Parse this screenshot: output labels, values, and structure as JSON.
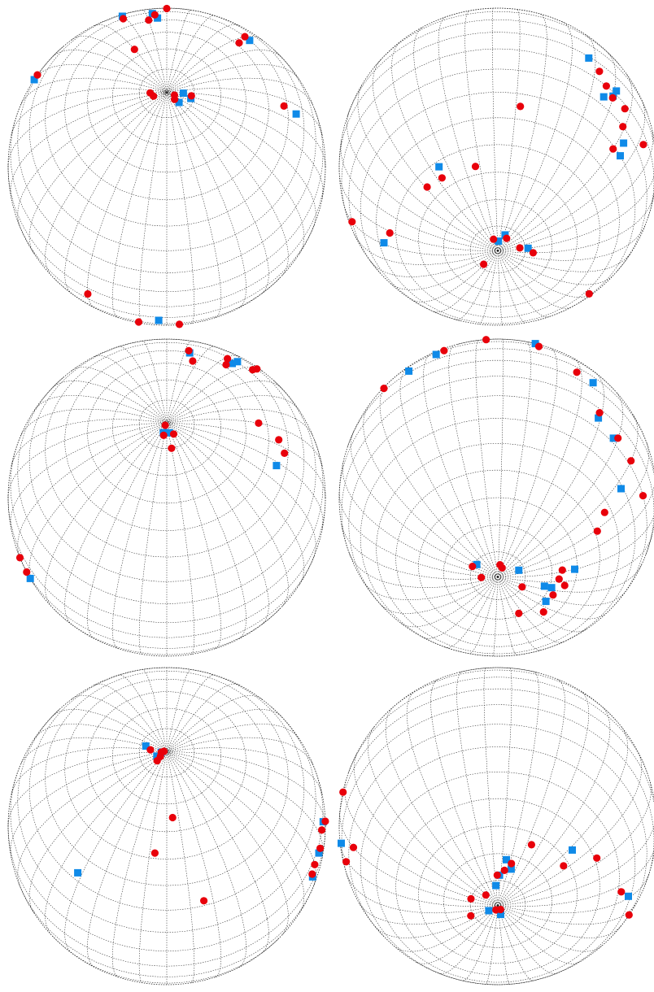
{
  "figure": {
    "panels": [
      {
        "id": "r1c1",
        "row": 0,
        "col": 0,
        "tilt_deg": 62,
        "rotation_deg": 10,
        "red": [
          [
            -170,
            32
          ],
          [
            -164,
            44
          ],
          [
            -149,
            40
          ],
          [
            -160,
            49
          ],
          [
            -140,
            66
          ],
          [
            -112,
            16
          ],
          [
            -116,
            -52
          ],
          [
            -138,
            -56
          ],
          [
            -165,
            -51
          ],
          [
            -149,
            -64
          ],
          [
            -147,
            -67
          ],
          [
            -153,
            -72
          ],
          [
            -158,
            -73
          ],
          [
            -165,
            -77
          ],
          [
            170,
            -70
          ],
          [
            125,
            -76
          ],
          [
            -177,
            -79
          ],
          [
            64,
            -79
          ],
          [
            15,
            -24
          ],
          [
            -1,
            -22
          ],
          [
            -20,
            -5
          ],
          [
            12,
            -40
          ],
          [
            147,
            48
          ],
          [
            150,
            40
          ],
          [
            106,
            42
          ],
          [
            93,
            81
          ],
          [
            78,
            87
          ],
          [
            55,
            86
          ],
          [
            -63,
            85
          ],
          [
            -79,
            84
          ]
        ],
        "blue": [
          [
            -163,
            42
          ],
          [
            -150,
            35
          ],
          [
            -165,
            48
          ],
          [
            -111,
            13
          ],
          [
            -140,
            -67
          ],
          [
            -146,
            -71
          ],
          [
            -154,
            -73
          ],
          [
            -152,
            -76
          ],
          [
            -160,
            -78
          ],
          [
            120,
            -80
          ],
          [
            -5,
            -38
          ],
          [
            18,
            -48
          ],
          [
            7,
            -14
          ],
          [
            147,
            40
          ],
          [
            105,
            35
          ],
          [
            98,
            84
          ],
          [
            86,
            81
          ],
          [
            58,
            84
          ]
        ]
      },
      {
        "id": "r1c2",
        "row": 0,
        "col": 1,
        "tilt_deg": -58,
        "rotation_deg": 62,
        "red": [
          [
            -84,
            18
          ],
          [
            -118,
            10
          ],
          [
            -128,
            -2
          ],
          [
            -146,
            -9
          ],
          [
            -156,
            -18
          ],
          [
            -162,
            -34
          ],
          [
            -103,
            18
          ],
          [
            -106,
            22
          ],
          [
            -89,
            -2
          ],
          [
            -62,
            24
          ],
          [
            -58,
            1
          ],
          [
            -40,
            -20
          ],
          [
            -31,
            -47
          ],
          [
            11,
            -55
          ],
          [
            23,
            -56
          ],
          [
            47,
            -57
          ],
          [
            72,
            -35
          ],
          [
            117,
            -12
          ],
          [
            133,
            -14
          ],
          [
            102,
            -5
          ],
          [
            106,
            -10
          ],
          [
            110,
            -13
          ],
          [
            119,
            -20
          ],
          [
            120,
            -31
          ],
          [
            160,
            -77
          ],
          [
            146,
            -82
          ],
          [
            94,
            -84
          ],
          [
            44,
            -85
          ],
          [
            -78,
            -82
          ]
        ],
        "blue": [
          [
            -73,
            33
          ],
          [
            -131,
            -9
          ],
          [
            -101,
            16
          ],
          [
            -93,
            6
          ],
          [
            -80,
            -8
          ],
          [
            -70,
            -10
          ],
          [
            -66,
            12
          ],
          [
            -57,
            -12
          ],
          [
            -39,
            -43
          ],
          [
            25,
            -52
          ],
          [
            106,
            -16
          ],
          [
            97,
            -1
          ],
          [
            111,
            -8
          ],
          [
            123,
            -25
          ],
          [
            125,
            -30
          ],
          [
            110,
            -12
          ],
          [
            150,
            -79
          ],
          [
            84,
            -83
          ],
          [
            65,
            -86
          ]
        ]
      },
      {
        "id": "r2c1",
        "row": 1,
        "col": 0,
        "tilt_deg": 62,
        "rotation_deg": 70,
        "red": [
          [
            -151,
            30
          ],
          [
            -152,
            36
          ],
          [
            -141,
            42
          ],
          [
            -144,
            48
          ],
          [
            -127,
            56
          ],
          [
            -122,
            48
          ],
          [
            -101,
            22
          ],
          [
            -101,
            18
          ],
          [
            -105,
            15
          ],
          [
            -102,
            9
          ],
          [
            -126,
            -57
          ],
          [
            -112,
            -60
          ],
          [
            -107,
            -60
          ],
          [
            -99,
            -57
          ],
          [
            -77,
            -53
          ],
          [
            -100,
            -40
          ],
          [
            -78,
            -25
          ],
          [
            -39,
            -27
          ],
          [
            -42,
            -20
          ],
          [
            -46,
            -24
          ],
          [
            24,
            -48
          ],
          [
            19,
            -39
          ],
          [
            -3,
            -14
          ],
          [
            0,
            -10
          ],
          [
            5,
            -13
          ],
          [
            -2,
            -23
          ],
          [
            170,
            54
          ],
          [
            163,
            45
          ],
          [
            157,
            42
          ],
          [
            100,
            85
          ],
          [
            80,
            80
          ],
          [
            57,
            85
          ],
          [
            37,
            89
          ]
        ],
        "blue": [
          [
            -145,
            39
          ],
          [
            -145,
            44
          ],
          [
            -123,
            50
          ],
          [
            -110,
            18
          ],
          [
            -102,
            13
          ],
          [
            -101,
            11
          ],
          [
            -122,
            -66
          ],
          [
            -104,
            -62
          ],
          [
            -95,
            -66
          ],
          [
            -80,
            -55
          ],
          [
            -91,
            -44
          ],
          [
            -46,
            -17
          ],
          [
            -38,
            -29
          ],
          [
            16,
            -43
          ],
          [
            8,
            -13
          ],
          [
            -1,
            -18
          ],
          [
            148,
            45
          ],
          [
            84,
            86
          ],
          [
            52,
            86
          ]
        ]
      },
      {
        "id": "r2c2",
        "row": 1,
        "col": 1,
        "tilt_deg": -60,
        "rotation_deg": 8,
        "red": [
          [
            -155,
            39
          ],
          [
            -148,
            40
          ],
          [
            -140,
            33
          ],
          [
            -144,
            43
          ],
          [
            -131,
            54
          ],
          [
            -121,
            42
          ],
          [
            -104,
            27
          ],
          [
            -89,
            23
          ],
          [
            -40,
            15
          ],
          [
            -13,
            19
          ],
          [
            3,
            32
          ],
          [
            24,
            20
          ],
          [
            38,
            5
          ],
          [
            49,
            -12
          ],
          [
            60,
            -16
          ],
          [
            70,
            -18
          ],
          [
            85,
            -20
          ],
          [
            75,
            -43
          ],
          [
            81,
            -49
          ],
          [
            98,
            -66
          ],
          [
            107,
            -67
          ],
          [
            114,
            -64
          ],
          [
            125,
            -67
          ],
          [
            145,
            -65
          ],
          [
            164,
            -71
          ],
          [
            126,
            -80
          ],
          [
            31,
            -86
          ],
          [
            17,
            -85
          ],
          [
            -59,
            -80
          ],
          [
            -86,
            -84
          ]
        ],
        "blue": [
          [
            -150,
            35
          ],
          [
            -145,
            38
          ],
          [
            -130,
            45
          ],
          [
            -110,
            34
          ],
          [
            -27,
            12
          ],
          [
            -16,
            17
          ],
          [
            24,
            31
          ],
          [
            45,
            4
          ],
          [
            49,
            -15
          ],
          [
            58,
            -18
          ],
          [
            73,
            -31
          ],
          [
            100,
            -61
          ],
          [
            117,
            -69
          ],
          [
            134,
            -68
          ],
          [
            116,
            -72
          ],
          [
            80,
            -82
          ],
          [
            -50,
            -81
          ]
        ]
      },
      {
        "id": "r3c1",
        "row": 2,
        "col": 0,
        "tilt_deg": 62,
        "rotation_deg": 140,
        "red": [
          [
            -150,
            7
          ],
          [
            -153,
            5
          ],
          [
            -143,
            7
          ],
          [
            -137,
            10
          ],
          [
            -128,
            0
          ],
          [
            -130,
            -17
          ],
          [
            -116,
            -24
          ],
          [
            -110,
            -30
          ],
          [
            -127,
            -67
          ],
          [
            -122,
            -71
          ],
          [
            -130,
            -73
          ],
          [
            -138,
            -77
          ],
          [
            -150,
            -78
          ],
          [
            -168,
            -78
          ],
          [
            140,
            -65
          ],
          [
            -168,
            -84
          ],
          [
            -110,
            -82
          ],
          [
            -12,
            -8
          ],
          [
            -13,
            4
          ],
          [
            0,
            4
          ],
          [
            -4,
            -14
          ],
          [
            17,
            -13
          ],
          [
            25,
            -23
          ],
          [
            96,
            -32
          ],
          [
            133,
            52
          ],
          [
            156,
            32
          ],
          [
            145,
            65
          ],
          [
            41,
            84
          ],
          [
            41,
            89
          ],
          [
            96,
            85
          ],
          [
            56,
            88
          ],
          [
            90,
            87
          ]
        ],
        "blue": [
          [
            -153,
            3
          ],
          [
            -145,
            7
          ],
          [
            -133,
            9
          ],
          [
            -124,
            -3
          ],
          [
            -136,
            -70
          ],
          [
            -134,
            -74
          ],
          [
            -148,
            -77
          ],
          [
            -149,
            -80
          ],
          [
            -158,
            -82
          ],
          [
            -12,
            3
          ],
          [
            -1,
            -5
          ],
          [
            14,
            -12
          ],
          [
            -5,
            -20
          ],
          [
            98,
            33
          ],
          [
            76,
            86
          ],
          [
            57,
            88
          ],
          [
            31,
            82
          ]
        ]
      },
      {
        "id": "r4c2",
        "row": 2,
        "col": 1,
        "tilt_deg": -60,
        "rotation_deg": 205,
        "red": [
          [
            -102,
            32
          ],
          [
            -89,
            34
          ],
          [
            -73,
            44
          ],
          [
            -92,
            49
          ],
          [
            -152,
            55
          ],
          [
            -137,
            60
          ],
          [
            -95,
            72
          ],
          [
            -53,
            65
          ],
          [
            -36,
            -19
          ],
          [
            -56,
            -38
          ],
          [
            -83,
            -49
          ],
          [
            -93,
            -62
          ],
          [
            -126,
            -64
          ],
          [
            -138,
            -73
          ],
          [
            -145,
            -76
          ],
          [
            -156,
            -78
          ],
          [
            128,
            -80
          ],
          [
            159,
            -84
          ],
          [
            45,
            -88
          ],
          [
            -5,
            -88
          ],
          [
            88,
            -79
          ],
          [
            128,
            20
          ],
          [
            101,
            24
          ],
          [
            111,
            13
          ],
          [
            127,
            4
          ],
          [
            115,
            12
          ],
          [
            109,
            -16
          ],
          [
            120,
            -24
          ]
        ],
        "blue": [
          [
            -96,
            40
          ],
          [
            -78,
            40
          ],
          [
            -78,
            33
          ],
          [
            -150,
            58
          ],
          [
            -142,
            52
          ],
          [
            -84,
            56
          ],
          [
            -74,
            60
          ],
          [
            -51,
            -32
          ],
          [
            -98,
            -56
          ],
          [
            -145,
            -72
          ],
          [
            -136,
            -75
          ],
          [
            -152,
            -78
          ],
          [
            -160,
            -82
          ],
          [
            80,
            -86
          ],
          [
            10,
            -86
          ],
          [
            124,
            23
          ],
          [
            116,
            5
          ],
          [
            113,
            -9
          ]
        ]
      }
    ],
    "colors": {
      "red_marker": "#e8000b",
      "blue_marker": "#0f8ae8",
      "grid": "#222222",
      "background": "#ffffff"
    }
  }
}
